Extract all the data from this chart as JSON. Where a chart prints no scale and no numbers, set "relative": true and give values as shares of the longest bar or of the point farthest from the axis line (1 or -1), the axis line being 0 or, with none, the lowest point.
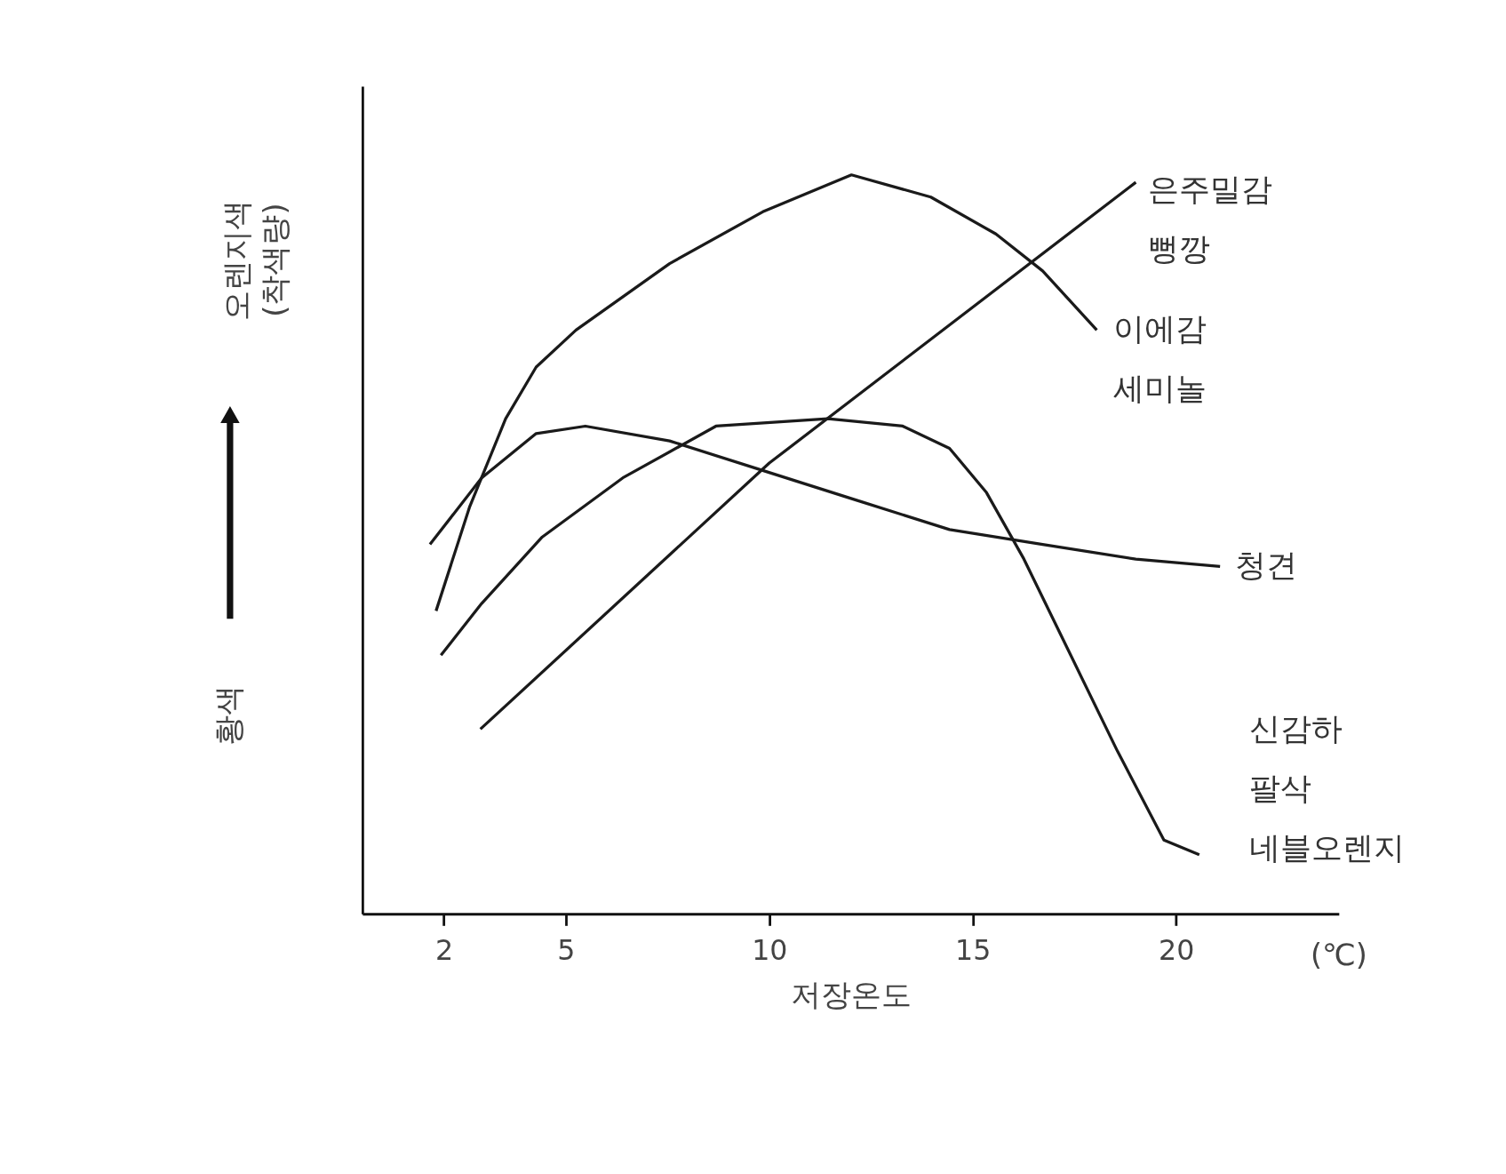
{
  "chart_data": {
    "type": "line",
    "relative": true,
    "xlabel": "저장온도",
    "ylabel": "오렌지색 (착색량)",
    "annotations": [
      "황색",
      "(℃)"
    ],
    "xlim": [
      0,
      24
    ],
    "xticks": [
      2,
      5,
      10,
      15,
      20
    ],
    "grid": false,
    "legend": false,
    "marker": "none",
    "line_style": "solid",
    "series": [
      {
        "name": "이에감\n세미놀",
        "color": "#1a1a1a",
        "x": [
          1.81,
          2.63,
          3.52,
          4.27,
          5.25,
          7.55,
          9.84,
          12.02,
          13.97,
          15.57,
          16.72,
          18.05
        ],
        "values": [
          0.41,
          0.55,
          0.67,
          0.74,
          0.79,
          0.88,
          0.95,
          1,
          0.97,
          0.92,
          0.87,
          0.79
        ]
      },
      {
        "name": "은주밀감\n뻥깡",
        "color": "#1a1a1a",
        "x": [
          2.9,
          10.0,
          19.01
        ],
        "values": [
          0.25,
          0.61,
          0.99
        ]
      },
      {
        "name": "청견",
        "color": "#1a1a1a",
        "x": [
          1.66,
          2.93,
          4.27,
          5.48,
          7.55,
          9.84,
          12.13,
          14.43,
          16.72,
          19.01,
          21.08
        ],
        "values": [
          0.5,
          0.59,
          0.65,
          0.66,
          0.64,
          0.6,
          0.56,
          0.52,
          0.5,
          0.48,
          0.47
        ]
      },
      {
        "name": "신감하\n팔삭\n네블오렌지",
        "color": "#1a1a1a",
        "x": [
          1.93,
          2.93,
          4.42,
          6.4,
          8.69,
          11.44,
          13.28,
          14.43,
          15.34,
          16.26,
          17.41,
          18.56,
          19.7,
          20.57
        ],
        "values": [
          0.35,
          0.42,
          0.51,
          0.59,
          0.66,
          0.67,
          0.66,
          0.63,
          0.57,
          0.48,
          0.35,
          0.22,
          0.1,
          0.08
        ]
      }
    ]
  }
}
